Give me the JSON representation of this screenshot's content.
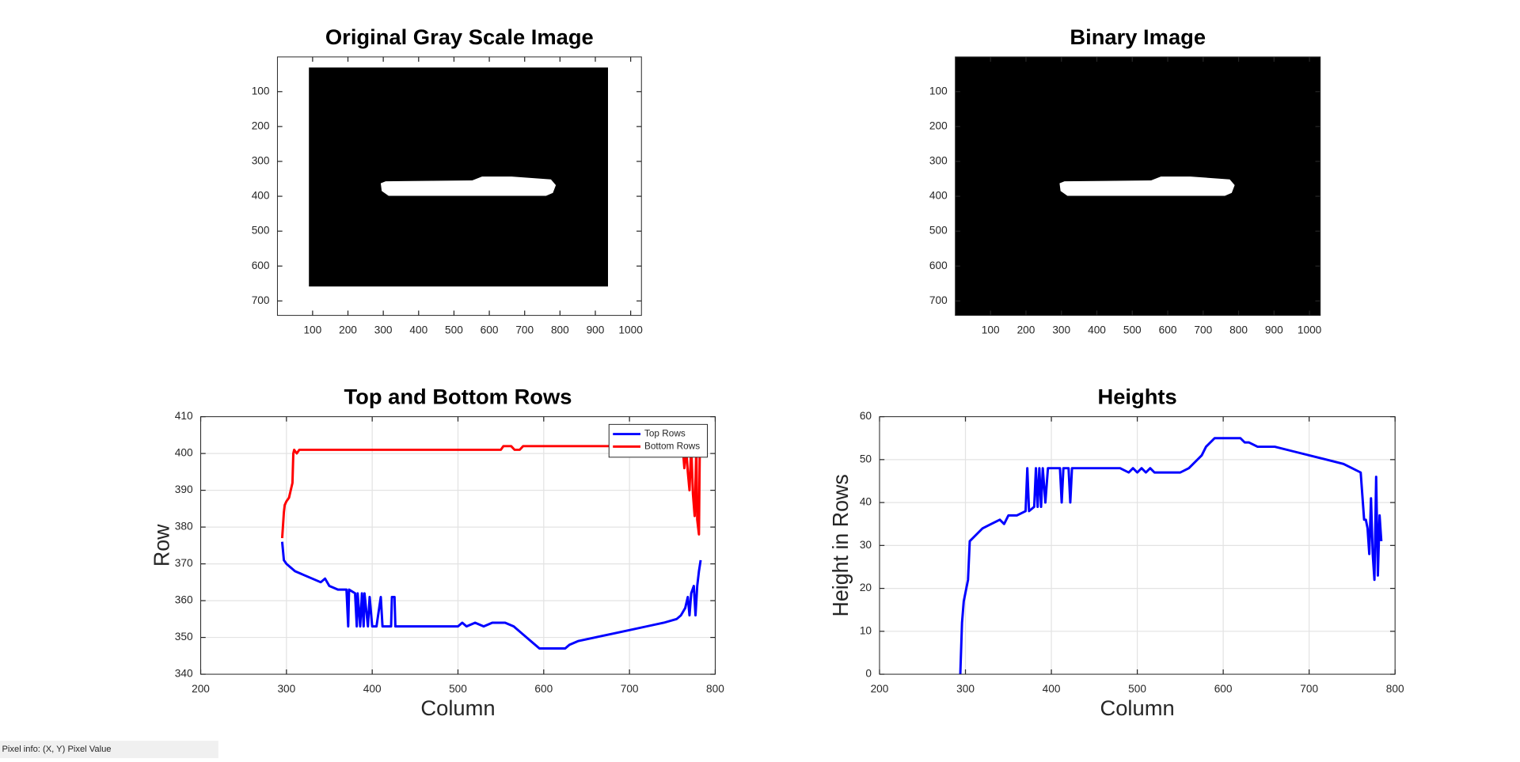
{
  "chart_data": [
    {
      "type": "image",
      "title": "Original Gray Scale Image",
      "xlim": [
        0.5,
        1030.5
      ],
      "ylim": [
        0.5,
        741.5
      ],
      "y_reversed": true,
      "xticks": [
        100,
        200,
        300,
        400,
        500,
        600,
        700,
        800,
        900,
        1000
      ],
      "yticks": [
        100,
        200,
        300,
        400,
        500,
        600,
        700
      ]
    },
    {
      "type": "image",
      "title": "Binary Image",
      "xlim": [
        0.5,
        1030.5
      ],
      "ylim": [
        0.5,
        741.5
      ],
      "y_reversed": true,
      "xticks": [
        100,
        200,
        300,
        400,
        500,
        600,
        700,
        800,
        900,
        1000
      ],
      "yticks": [
        100,
        200,
        300,
        400,
        500,
        600,
        700
      ]
    },
    {
      "type": "line",
      "title": "Top and Bottom Rows",
      "xlabel": "Column",
      "ylabel": "Row",
      "xlim": [
        200,
        800
      ],
      "ylim": [
        340,
        410
      ],
      "xticks": [
        200,
        300,
        400,
        500,
        600,
        700,
        800
      ],
      "yticks": [
        340,
        350,
        360,
        370,
        380,
        390,
        400,
        410
      ],
      "grid": true,
      "legend": "northeast",
      "series": [
        {
          "name": "Top Rows",
          "color": "#0000ff",
          "x": [
            295,
            297,
            300,
            305,
            310,
            320,
            330,
            340,
            345,
            350,
            360,
            370,
            372,
            373,
            380,
            382,
            383,
            386,
            388,
            390,
            391,
            395,
            397,
            400,
            405,
            410,
            412,
            422,
            423,
            426,
            427,
            450,
            500,
            505,
            510,
            520,
            530,
            540,
            555,
            565,
            575,
            585,
            595,
            610,
            625,
            630,
            640,
            660,
            680,
            700,
            720,
            740,
            755,
            760,
            765,
            768,
            770,
            772,
            775,
            777,
            779,
            781,
            783
          ],
          "values": [
            376,
            371,
            370,
            369,
            368,
            367,
            366,
            365,
            366,
            364,
            363,
            363,
            353,
            363,
            362,
            353,
            362,
            353,
            362,
            353,
            362,
            353,
            361,
            353,
            353,
            361,
            353,
            353,
            361,
            361,
            353,
            353,
            353,
            354,
            353,
            354,
            353,
            354,
            354,
            353,
            351,
            349,
            347,
            347,
            347,
            348,
            349,
            350,
            351,
            352,
            353,
            354,
            355,
            356,
            358,
            361,
            356,
            362,
            364,
            356,
            364,
            368,
            371
          ]
        },
        {
          "name": "Bottom Rows",
          "color": "#ff0000",
          "x": [
            295,
            297,
            298,
            300,
            303,
            305,
            307,
            308,
            309,
            312,
            315,
            320,
            400,
            500,
            550,
            553,
            562,
            566,
            572,
            576,
            600,
            700,
            762,
            764,
            766,
            768,
            770,
            772,
            774,
            776,
            778,
            779,
            781,
            782
          ],
          "values": [
            377,
            384,
            386,
            387,
            388,
            390,
            392,
            400,
            401,
            400,
            401,
            401,
            401,
            401,
            401,
            402,
            402,
            401,
            401,
            402,
            402,
            402,
            402,
            396,
            402,
            395,
            390,
            402,
            389,
            383,
            402,
            382,
            378,
            402
          ]
        }
      ]
    },
    {
      "type": "line",
      "title": "Heights",
      "xlabel": "Column",
      "ylabel": "Height in Rows",
      "xlim": [
        200,
        800
      ],
      "ylim": [
        0,
        60
      ],
      "xticks": [
        200,
        300,
        400,
        500,
        600,
        700,
        800
      ],
      "yticks": [
        0,
        10,
        20,
        30,
        40,
        50,
        60
      ],
      "grid": true,
      "series": [
        {
          "color": "#0000ff",
          "x": [
            294,
            296,
            298,
            300,
            303,
            305,
            310,
            320,
            330,
            340,
            345,
            350,
            360,
            370,
            372,
            374,
            380,
            382,
            384,
            386,
            388,
            390,
            393,
            396,
            400,
            410,
            412,
            414,
            420,
            422,
            424,
            450,
            480,
            490,
            495,
            500,
            505,
            510,
            515,
            520,
            550,
            560,
            570,
            575,
            580,
            590,
            600,
            620,
            625,
            630,
            640,
            660,
            680,
            700,
            720,
            740,
            750,
            760,
            764,
            766,
            768,
            770,
            772,
            774,
            776,
            778,
            780,
            782,
            784
          ],
          "values": [
            0,
            12,
            17,
            19,
            22,
            31,
            32,
            34,
            35,
            36,
            35,
            37,
            37,
            38,
            48,
            38,
            39,
            48,
            39,
            48,
            39,
            48,
            40,
            48,
            48,
            48,
            40,
            48,
            48,
            40,
            48,
            48,
            48,
            47,
            48,
            47,
            48,
            47,
            48,
            47,
            47,
            48,
            50,
            51,
            53,
            55,
            55,
            55,
            54,
            54,
            53,
            53,
            52,
            51,
            50,
            49,
            48,
            47,
            36,
            36,
            34,
            28,
            41,
            28,
            22,
            46,
            23,
            37,
            31
          ]
        }
      ]
    }
  ],
  "status_bar": "Pixel info: (X, Y)  Pixel Value"
}
